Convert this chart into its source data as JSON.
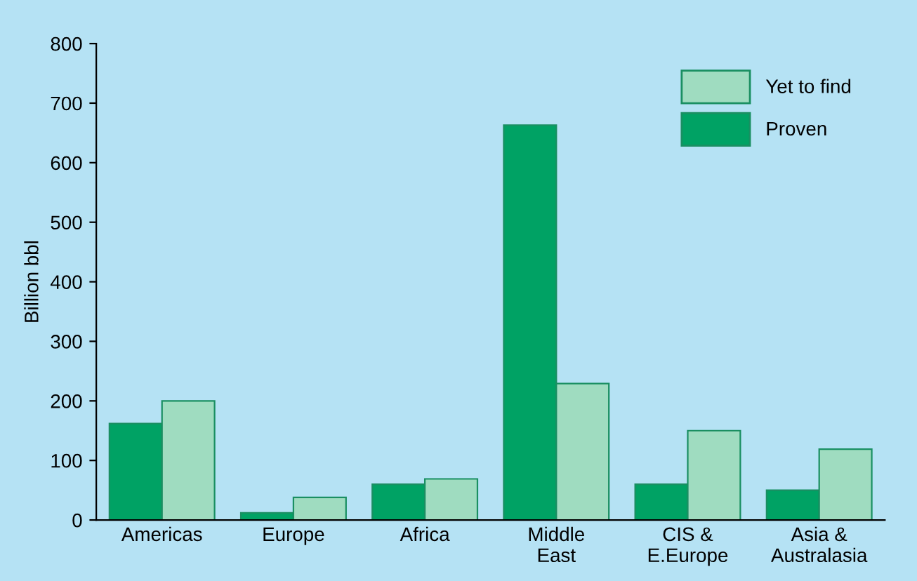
{
  "chart_data": {
    "type": "bar",
    "ylabel": "Billion bbl",
    "categories": [
      "Americas",
      "Europe",
      "Africa",
      "Middle\nEast",
      "CIS &\nE.Europe",
      "Asia &\nAustralasia"
    ],
    "series": [
      {
        "name": "Proven",
        "color": "#00a264",
        "values": [
          162,
          12,
          60,
          663,
          60,
          50
        ]
      },
      {
        "name": "Yet to find",
        "color": "#9fdcc0",
        "values": [
          200,
          38,
          69,
          229,
          150,
          119
        ]
      }
    ],
    "ylim": [
      0,
      800
    ],
    "yticks": [
      0,
      100,
      200,
      300,
      400,
      500,
      600,
      700,
      800
    ],
    "grid": false,
    "legend": "top right"
  }
}
